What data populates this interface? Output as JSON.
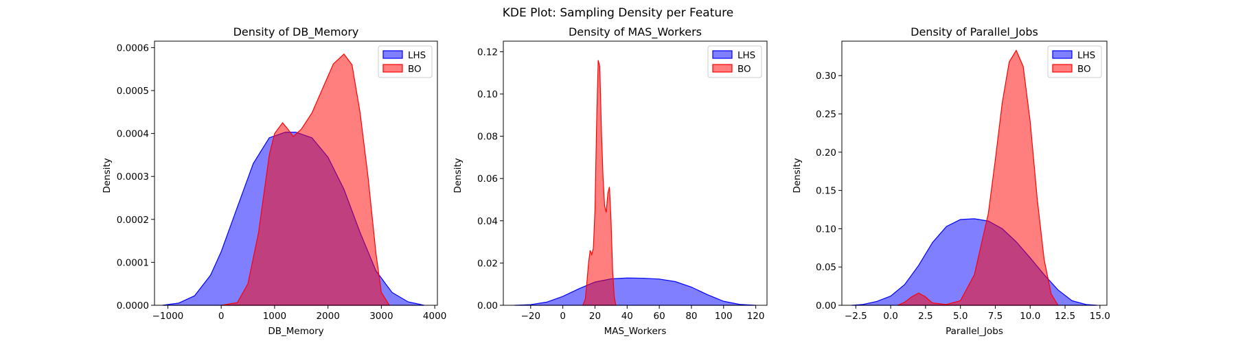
{
  "figure": {
    "title": "KDE Plot: Sampling Density per Feature"
  },
  "colors": {
    "LHS": "#0000ff",
    "BO": "#ff0000"
  },
  "chart_data": [
    {
      "type": "area",
      "title": "Density of DB_Memory",
      "xlabel": "DB_Memory",
      "ylabel": "Density",
      "xlim": [
        -1250,
        4050
      ],
      "ylim": [
        0,
        0.000615
      ],
      "xticks": [
        -1000,
        0,
        1000,
        2000,
        3000,
        4000
      ],
      "xtick_labels": [
        "−1000",
        "0",
        "1000",
        "2000",
        "3000",
        "4000"
      ],
      "yticks": [
        0,
        0.0001,
        0.0002,
        0.0003,
        0.0004,
        0.0005,
        0.0006
      ],
      "ytick_labels": [
        "0.0000",
        "0.0001",
        "0.0002",
        "0.0003",
        "0.0004",
        "0.0005",
        "0.0006"
      ],
      "legend": {
        "position": "upper right",
        "entries": [
          "LHS",
          "BO"
        ]
      },
      "series": [
        {
          "name": "LHS",
          "x": [
            -1100,
            -800,
            -500,
            -200,
            0,
            300,
            600,
            900,
            1200,
            1400,
            1700,
            2000,
            2300,
            2600,
            2900,
            3200,
            3500,
            3800
          ],
          "y": [
            0,
            5e-06,
            2.2e-05,
            7e-05,
            0.000125,
            0.000228,
            0.00033,
            0.00039,
            0.000403,
            0.000403,
            0.00039,
            0.000345,
            0.00027,
            0.00017,
            8e-05,
            3e-05,
            8e-06,
            0
          ]
        },
        {
          "name": "BO",
          "x": [
            0,
            300,
            500,
            700,
            900,
            1000,
            1150,
            1250,
            1350,
            1500,
            1700,
            1900,
            2100,
            2300,
            2450,
            2600,
            2750,
            2900,
            3000,
            3150
          ],
          "y": [
            0,
            6e-06,
            5e-05,
            0.00017,
            0.00035,
            0.0004,
            0.000425,
            0.00041,
            0.000393,
            0.00041,
            0.000448,
            0.000505,
            0.000562,
            0.000585,
            0.00056,
            0.00045,
            0.0003,
            0.00012,
            3e-05,
            0
          ]
        }
      ]
    },
    {
      "type": "area",
      "title": "Density of MAS_Workers",
      "xlabel": "MAS_Workers",
      "ylabel": "Density",
      "xlim": [
        -37,
        127
      ],
      "ylim": [
        0,
        0.125
      ],
      "xticks": [
        -20,
        0,
        20,
        40,
        60,
        80,
        100,
        120
      ],
      "xtick_labels": [
        "−20",
        "0",
        "20",
        "40",
        "60",
        "80",
        "100",
        "120"
      ],
      "yticks": [
        0,
        0.02,
        0.04,
        0.06,
        0.08,
        0.1,
        0.12
      ],
      "ytick_labels": [
        "0.00",
        "0.02",
        "0.04",
        "0.06",
        "0.08",
        "0.10",
        "0.12"
      ],
      "legend": {
        "position": "upper right",
        "entries": [
          "LHS",
          "BO"
        ]
      },
      "series": [
        {
          "name": "LHS",
          "x": [
            -30,
            -20,
            -10,
            0,
            10,
            20,
            30,
            40,
            50,
            60,
            70,
            80,
            90,
            100,
            110,
            120
          ],
          "y": [
            0,
            0.0003,
            0.0015,
            0.0042,
            0.0078,
            0.011,
            0.0125,
            0.0129,
            0.0128,
            0.0124,
            0.0112,
            0.0086,
            0.005,
            0.0019,
            0.0004,
            0
          ]
        },
        {
          "name": "BO",
          "x": [
            12.5,
            14,
            15,
            16,
            17,
            18,
            19,
            20,
            21,
            22,
            23,
            24,
            25,
            26,
            27,
            28,
            29,
            30,
            31,
            32,
            33
          ],
          "y": [
            0,
            0.003,
            0.011,
            0.02,
            0.026,
            0.024,
            0.027,
            0.045,
            0.085,
            0.116,
            0.113,
            0.083,
            0.061,
            0.047,
            0.044,
            0.053,
            0.056,
            0.04,
            0.016,
            0.004,
            0
          ]
        }
      ]
    },
    {
      "type": "area",
      "title": "Density of Parallel_Jobs",
      "xlabel": "Parallel_Jobs",
      "ylabel": "Density",
      "xlim": [
        -3.5,
        15.5
      ],
      "ylim": [
        0,
        0.345
      ],
      "xticks": [
        -2.5,
        0,
        2.5,
        5,
        7.5,
        10,
        12.5,
        15
      ],
      "xtick_labels": [
        "−2.5",
        "0.0",
        "2.5",
        "5.0",
        "7.5",
        "10.0",
        "12.5",
        "15.0"
      ],
      "yticks": [
        0,
        0.05,
        0.1,
        0.15,
        0.2,
        0.25,
        0.3
      ],
      "ytick_labels": [
        "0.00",
        "0.05",
        "0.10",
        "0.15",
        "0.20",
        "0.25",
        "0.30"
      ],
      "legend": {
        "position": "upper right",
        "entries": [
          "LHS",
          "BO"
        ]
      },
      "series": [
        {
          "name": "LHS",
          "x": [
            -2.8,
            -2,
            -1,
            0,
            1,
            2,
            3,
            4,
            5,
            6,
            7,
            8,
            9,
            10,
            11,
            12,
            13,
            14,
            14.8
          ],
          "y": [
            0,
            0.001,
            0.005,
            0.012,
            0.027,
            0.052,
            0.082,
            0.103,
            0.112,
            0.113,
            0.11,
            0.1,
            0.083,
            0.062,
            0.04,
            0.02,
            0.006,
            0.001,
            0
          ]
        },
        {
          "name": "BO",
          "x": [
            0.5,
            1,
            1.5,
            2,
            2.5,
            3,
            4,
            5,
            6,
            7,
            7.5,
            8,
            8.5,
            9,
            9.5,
            10,
            10.5,
            11,
            11.5,
            12
          ],
          "y": [
            0,
            0.004,
            0.011,
            0.016,
            0.011,
            0.003,
            0.001,
            0.006,
            0.04,
            0.12,
            0.19,
            0.265,
            0.318,
            0.333,
            0.312,
            0.24,
            0.14,
            0.06,
            0.015,
            0
          ]
        }
      ]
    }
  ]
}
